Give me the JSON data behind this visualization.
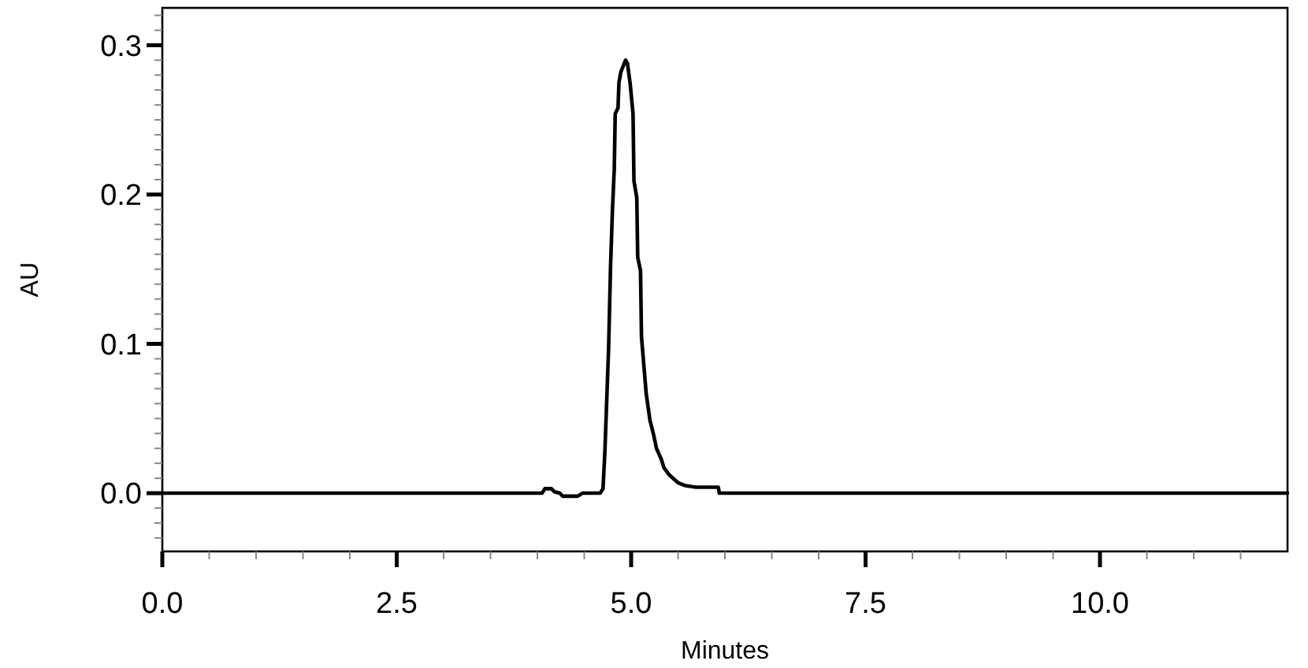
{
  "chart_data": {
    "type": "line",
    "xlabel": "Minutes",
    "ylabel": "AU",
    "color": "#000000",
    "x": [
      0,
      4.05,
      4.08,
      4.15,
      4.18,
      4.24,
      4.27,
      4.43,
      4.48,
      4.67,
      4.7,
      4.72,
      4.76,
      4.78,
      4.8,
      4.82,
      4.83,
      4.86,
      4.87,
      4.89,
      4.94,
      4.96,
      4.99,
      5.02,
      5.03,
      5.06,
      5.07,
      5.1,
      5.11,
      5.16,
      5.2,
      5.24,
      5.27,
      5.32,
      5.35,
      5.41,
      5.5,
      5.58,
      5.69,
      5.93,
      5.94,
      12
    ],
    "values": [
      0,
      0,
      0.003,
      0.003,
      0.001,
      0,
      -0.002,
      -0.002,
      0,
      0,
      0.003,
      0.028,
      0.098,
      0.151,
      0.189,
      0.217,
      0.254,
      0.258,
      0.275,
      0.282,
      0.29,
      0.288,
      0.274,
      0.254,
      0.209,
      0.198,
      0.158,
      0.149,
      0.105,
      0.067,
      0.049,
      0.039,
      0.03,
      0.023,
      0.017,
      0.012,
      0.007,
      0.005,
      0.004,
      0.004,
      0,
      0
    ],
    "xlim": [
      0,
      12
    ],
    "xticks": [
      {
        "value": 0,
        "label": "0.0"
      },
      {
        "value": 0.5,
        "label": null
      },
      {
        "value": 1,
        "label": null
      },
      {
        "value": 1.5,
        "label": null
      },
      {
        "value": 2,
        "label": null
      },
      2.5,
      {
        "value": 3,
        "label": null
      },
      {
        "value": 3.5,
        "label": null
      },
      {
        "value": 4,
        "label": null
      },
      {
        "value": 4.5,
        "label": null
      },
      {
        "value": 5,
        "label": "5.0"
      },
      {
        "value": 5.5,
        "label": null
      },
      {
        "value": 6,
        "label": null
      },
      {
        "value": 6.5,
        "label": null
      },
      {
        "value": 7,
        "label": null
      },
      7.5,
      {
        "value": 8,
        "label": null
      },
      {
        "value": 8.5,
        "label": null
      },
      {
        "value": 9,
        "label": null
      },
      {
        "value": 9.5,
        "label": null
      },
      {
        "value": 10,
        "label": "10.0"
      },
      {
        "value": 10.5,
        "label": null
      },
      {
        "value": 11,
        "label": null
      },
      {
        "value": 11.5,
        "label": null
      }
    ],
    "ylim": [
      -0.039,
      0.325
    ],
    "yticks": [
      {
        "value": -0.03,
        "label": null
      },
      {
        "value": -0.02,
        "label": null
      },
      {
        "value": -0.01,
        "label": null
      },
      {
        "value": 0,
        "label": "0.0"
      },
      {
        "value": 0.01,
        "label": null
      },
      {
        "value": 0.02,
        "label": null
      },
      {
        "value": 0.03,
        "label": null
      },
      {
        "value": 0.04,
        "label": null
      },
      {
        "value": 0.05,
        "label": null
      },
      {
        "value": 0.06,
        "label": null
      },
      {
        "value": 0.07,
        "label": null
      },
      {
        "value": 0.08,
        "label": null
      },
      {
        "value": 0.09,
        "label": null
      },
      0.1,
      {
        "value": 0.11,
        "label": null
      },
      {
        "value": 0.12,
        "label": null
      },
      {
        "value": 0.13,
        "label": null
      },
      {
        "value": 0.14,
        "label": null
      },
      {
        "value": 0.15,
        "label": null
      },
      {
        "value": 0.16,
        "label": null
      },
      {
        "value": 0.17,
        "label": null
      },
      {
        "value": 0.18,
        "label": null
      },
      {
        "value": 0.19,
        "label": null
      },
      0.2,
      {
        "value": 0.21,
        "label": null
      },
      {
        "value": 0.22,
        "label": null
      },
      {
        "value": 0.23,
        "label": null
      },
      {
        "value": 0.24,
        "label": null
      },
      {
        "value": 0.25,
        "label": null
      },
      {
        "value": 0.26,
        "label": null
      },
      {
        "value": 0.27,
        "label": null
      },
      {
        "value": 0.28,
        "label": null
      },
      {
        "value": 0.29,
        "label": null
      },
      0.3,
      {
        "value": 0.31,
        "label": null
      },
      {
        "value": 0.32,
        "label": null
      }
    ]
  }
}
